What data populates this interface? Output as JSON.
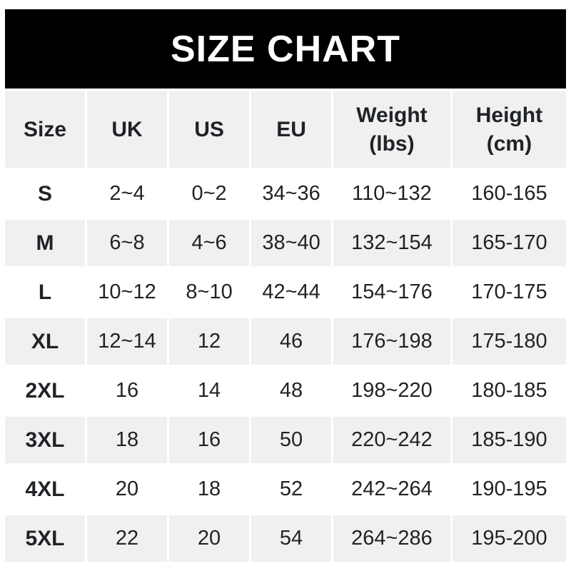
{
  "colors": {
    "banner_bg": "#000000",
    "banner_text": "#ffffff",
    "row_alt_bg": "#f0f0f0",
    "text": "#1f2226",
    "page_bg": "#ffffff"
  },
  "chart_data": {
    "type": "table",
    "title": "SIZE CHART",
    "columns": [
      "Size",
      "UK",
      "US",
      "EU",
      "Weight (lbs)",
      "Height (cm)"
    ],
    "rows": [
      [
        "S",
        "2~4",
        "0~2",
        "34~36",
        "110~132",
        "160-165"
      ],
      [
        "M",
        "6~8",
        "4~6",
        "38~40",
        "132~154",
        "165-170"
      ],
      [
        "L",
        "10~12",
        "8~10",
        "42~44",
        "154~176",
        "170-175"
      ],
      [
        "XL",
        "12~14",
        "12",
        "46",
        "176~198",
        "175-180"
      ],
      [
        "2XL",
        "16",
        "14",
        "48",
        "198~220",
        "180-185"
      ],
      [
        "3XL",
        "18",
        "16",
        "50",
        "220~242",
        "185-190"
      ],
      [
        "4XL",
        "20",
        "18",
        "52",
        "242~264",
        "190-195"
      ],
      [
        "5XL",
        "22",
        "20",
        "54",
        "264~286",
        "195-200"
      ]
    ]
  }
}
